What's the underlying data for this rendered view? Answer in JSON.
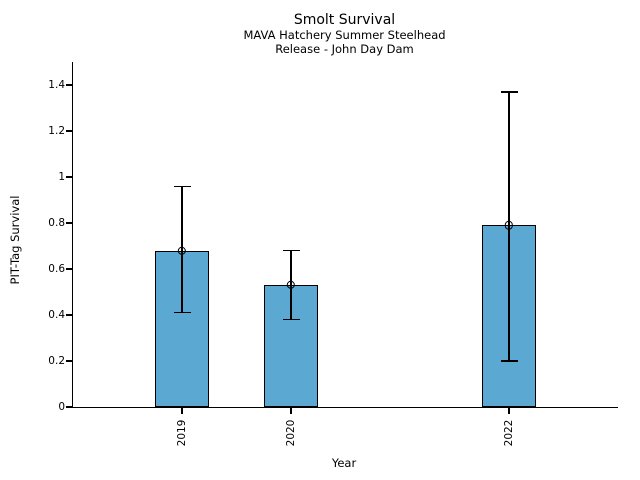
{
  "chart_data": {
    "type": "bar",
    "title": "Smolt Survival",
    "subtitle": [
      "MAVA Hatchery Summer Steelhead",
      "Release - John Day Dam"
    ],
    "xlabel": "Year",
    "ylabel": "PIT-Tag Survival",
    "categories": [
      "2019",
      "2020",
      "2022"
    ],
    "x": [
      2019,
      2020,
      2022
    ],
    "values": [
      0.68,
      0.53,
      0.79
    ],
    "error_low": [
      0.41,
      0.38,
      0.2
    ],
    "error_high": [
      0.96,
      0.68,
      1.37
    ],
    "xlim": [
      2018,
      2023
    ],
    "ylim": [
      0,
      1.5
    ],
    "yticks": [
      0,
      0.2,
      0.4,
      0.6,
      0.8,
      1,
      1.2,
      1.4
    ],
    "bar_width_years": 0.5,
    "bar_color": "#5BA8D3",
    "edge_color": "#000000",
    "error_color": "#000000",
    "marker": "open-circle",
    "grid": false,
    "legend": null
  }
}
